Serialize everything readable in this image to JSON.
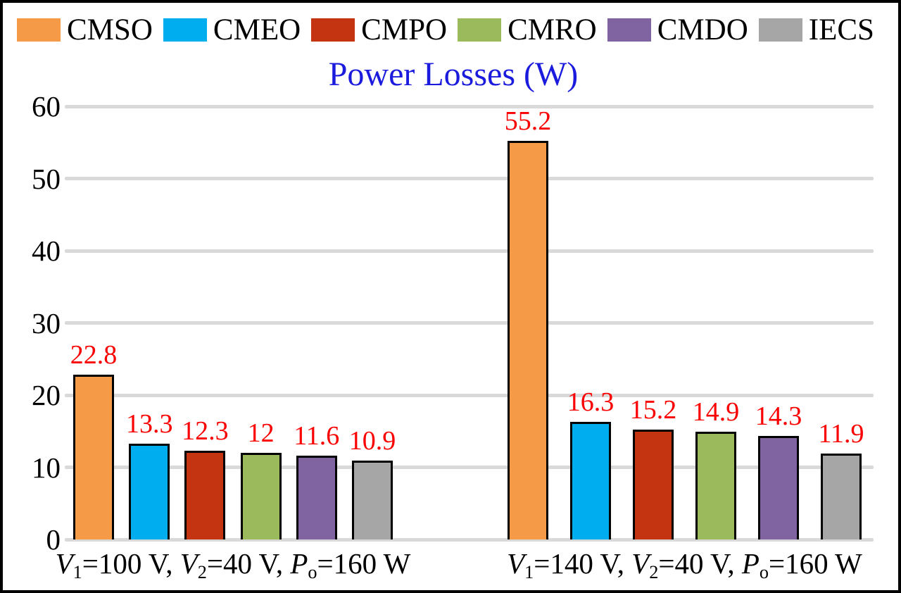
{
  "chart": {
    "title": "Power Losses (W)",
    "colors": {
      "title": "#1B1BDD",
      "value_label": "#FB0000",
      "gridline": "#D9D9D9",
      "bar_outline": "#000000",
      "axis_text": "#000000"
    }
  },
  "chart_data": {
    "type": "bar",
    "title": "Power Losses (W)",
    "categories": [
      "V1=100 V, V2=40 V, Po=160 W",
      "V1=140 V, V2=40 V, Po=160 W"
    ],
    "categories_rich": [
      [
        {
          "t": "V",
          "i": true
        },
        {
          "t": "1",
          "sub": true
        },
        {
          "t": "=100 V, "
        },
        {
          "t": "V",
          "i": true
        },
        {
          "t": "2",
          "sub": true
        },
        {
          "t": "=40 V, "
        },
        {
          "t": "P",
          "i": true
        },
        {
          "t": "o",
          "sub": true
        },
        {
          "t": "=160 W"
        }
      ],
      [
        {
          "t": "V",
          "i": true
        },
        {
          "t": "1",
          "sub": true
        },
        {
          "t": "=140 V, "
        },
        {
          "t": "V",
          "i": true
        },
        {
          "t": "2",
          "sub": true
        },
        {
          "t": "=40 V, "
        },
        {
          "t": "P",
          "i": true
        },
        {
          "t": "o",
          "sub": true
        },
        {
          "t": "=160 W"
        }
      ]
    ],
    "series": [
      {
        "name": "CMSO",
        "color": "#F59A47",
        "values": [
          22.8,
          55.2
        ],
        "labels": [
          "22.8",
          "55.2"
        ]
      },
      {
        "name": "CMEO",
        "color": "#00AEEF",
        "values": [
          13.3,
          16.3
        ],
        "labels": [
          "13.3",
          "16.3"
        ]
      },
      {
        "name": "CMPO",
        "color": "#C43410",
        "values": [
          12.3,
          15.2
        ],
        "labels": [
          "12.3",
          "15.2"
        ]
      },
      {
        "name": "CMRO",
        "color": "#9BBA5C",
        "values": [
          12.0,
          14.9
        ],
        "labels": [
          "12",
          "14.9"
        ]
      },
      {
        "name": "CMDO",
        "color": "#8064A2",
        "values": [
          11.6,
          14.3
        ],
        "labels": [
          "11.6",
          "14.3"
        ]
      },
      {
        "name": "IECS",
        "color": "#A6A6A6",
        "values": [
          10.9,
          11.9
        ],
        "labels": [
          "10.9",
          "11.9"
        ]
      }
    ],
    "ylim": [
      0,
      60
    ],
    "yticks": [
      0,
      10,
      20,
      30,
      40,
      50,
      60
    ],
    "grid": true,
    "legend_position": "top"
  }
}
